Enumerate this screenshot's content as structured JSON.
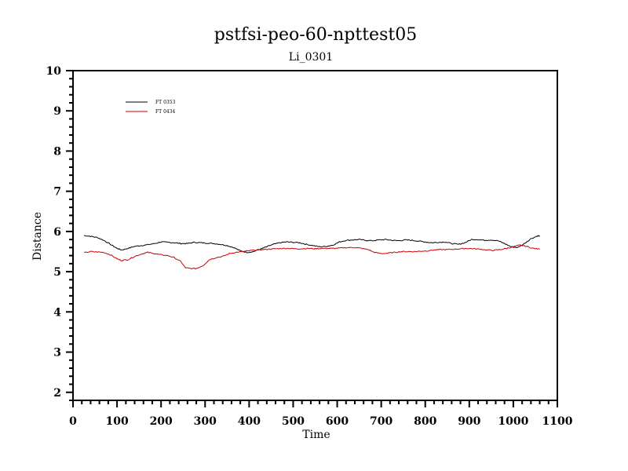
{
  "chart_data": {
    "type": "line",
    "title": "pstfsi-peo-60-npttest05",
    "subtitle": "Li_0301",
    "xlabel": "Time",
    "ylabel": "Distance",
    "xlim": [
      0,
      1100
    ],
    "ylim": [
      1.8,
      10
    ],
    "xticks": [
      0,
      100,
      200,
      300,
      400,
      500,
      600,
      700,
      800,
      900,
      1000,
      1100
    ],
    "yticks": [
      2,
      3,
      4,
      5,
      6,
      7,
      8,
      9,
      10
    ],
    "xtick_labels": [
      "0",
      "100",
      "200",
      "300",
      "400",
      "500",
      "600",
      "700",
      "800",
      "900",
      "1000",
      "1100"
    ],
    "ytick_labels": [
      "2",
      "3",
      "4",
      "5",
      "6",
      "7",
      "8",
      "9",
      "10"
    ],
    "grid": false,
    "legend_position": "top-left",
    "series": [
      {
        "name": "FT 0353",
        "color": "#000000",
        "x": [
          25,
          40,
          55,
          70,
          85,
          100,
          110,
          125,
          140,
          155,
          170,
          185,
          200,
          215,
          230,
          245,
          260,
          275,
          290,
          305,
          320,
          335,
          350,
          365,
          380,
          395,
          410,
          425,
          440,
          455,
          470,
          485,
          500,
          515,
          530,
          545,
          560,
          575,
          590,
          605,
          620,
          635,
          650,
          665,
          680,
          695,
          710,
          725,
          740,
          755,
          770,
          785,
          800,
          815,
          830,
          845,
          860,
          875,
          890,
          905,
          920,
          935,
          950,
          965,
          980,
          995,
          1010,
          1025,
          1040,
          1055,
          1060
        ],
        "y": [
          5.9,
          5.88,
          5.85,
          5.78,
          5.68,
          5.58,
          5.54,
          5.58,
          5.63,
          5.65,
          5.67,
          5.7,
          5.74,
          5.73,
          5.72,
          5.7,
          5.7,
          5.73,
          5.72,
          5.71,
          5.7,
          5.68,
          5.65,
          5.6,
          5.52,
          5.48,
          5.5,
          5.56,
          5.62,
          5.68,
          5.72,
          5.74,
          5.73,
          5.72,
          5.68,
          5.65,
          5.62,
          5.63,
          5.66,
          5.74,
          5.78,
          5.79,
          5.8,
          5.78,
          5.77,
          5.79,
          5.8,
          5.78,
          5.77,
          5.79,
          5.78,
          5.76,
          5.74,
          5.72,
          5.73,
          5.74,
          5.7,
          5.68,
          5.72,
          5.8,
          5.8,
          5.78,
          5.79,
          5.77,
          5.7,
          5.62,
          5.6,
          5.7,
          5.82,
          5.89,
          5.89
        ]
      },
      {
        "name": "FT 0434",
        "color": "#cc0000",
        "x": [
          25,
          40,
          55,
          70,
          85,
          100,
          110,
          125,
          140,
          155,
          170,
          185,
          200,
          215,
          230,
          245,
          255,
          265,
          280,
          295,
          310,
          325,
          340,
          355,
          370,
          385,
          400,
          415,
          430,
          445,
          460,
          475,
          490,
          505,
          520,
          535,
          550,
          565,
          580,
          595,
          610,
          625,
          640,
          655,
          670,
          685,
          700,
          715,
          730,
          745,
          760,
          775,
          790,
          805,
          820,
          835,
          850,
          865,
          880,
          895,
          910,
          925,
          940,
          955,
          970,
          985,
          1000,
          1015,
          1030,
          1045,
          1060
        ],
        "y": [
          5.47,
          5.5,
          5.49,
          5.48,
          5.42,
          5.32,
          5.28,
          5.3,
          5.38,
          5.44,
          5.48,
          5.45,
          5.42,
          5.4,
          5.35,
          5.25,
          5.1,
          5.08,
          5.08,
          5.15,
          5.3,
          5.35,
          5.38,
          5.45,
          5.48,
          5.5,
          5.52,
          5.54,
          5.55,
          5.56,
          5.57,
          5.58,
          5.58,
          5.57,
          5.57,
          5.58,
          5.57,
          5.58,
          5.58,
          5.58,
          5.59,
          5.6,
          5.6,
          5.58,
          5.55,
          5.48,
          5.45,
          5.46,
          5.48,
          5.5,
          5.5,
          5.5,
          5.51,
          5.52,
          5.54,
          5.55,
          5.55,
          5.56,
          5.57,
          5.58,
          5.57,
          5.56,
          5.54,
          5.53,
          5.55,
          5.58,
          5.62,
          5.66,
          5.63,
          5.58,
          5.56
        ]
      }
    ]
  }
}
